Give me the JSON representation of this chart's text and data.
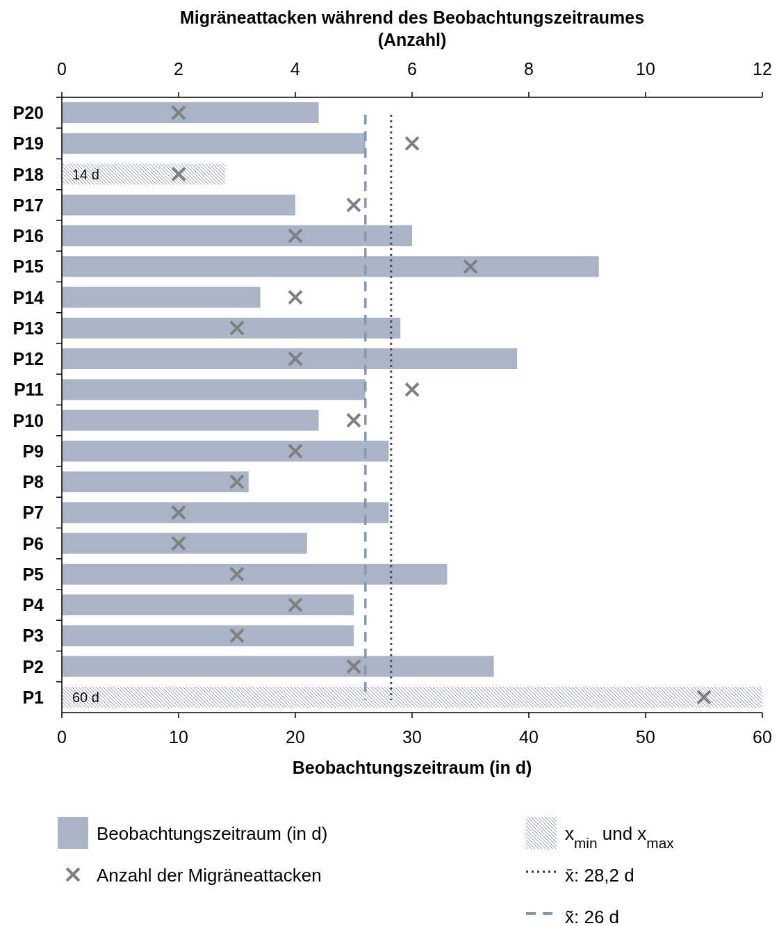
{
  "chart_data": {
    "type": "bar",
    "orientation": "horizontal",
    "x2label": "Migräneattacken während des Beobachtungszeitraumes (Anzahl)",
    "xlabel": "Beobachtungszeitraum (in d)",
    "categories": [
      "P20",
      "P19",
      "P18",
      "P17",
      "P16",
      "P15",
      "P14",
      "P13",
      "P12",
      "P11",
      "P10",
      "P9",
      "P8",
      "P7",
      "P6",
      "P5",
      "P4",
      "P3",
      "P2",
      "P1"
    ],
    "series": [
      {
        "name": "Beobachtungszeitraum (in d)",
        "color": "#a9b4c6",
        "values": [
          22,
          26,
          null,
          20,
          30,
          46,
          17,
          29,
          39,
          26,
          22,
          28,
          16,
          28,
          21,
          33,
          25,
          25,
          37,
          null
        ]
      },
      {
        "name": "x$_{min}$ und x$_{max}$",
        "color": "#8c9ab0",
        "values": [
          null,
          null,
          14,
          null,
          null,
          null,
          null,
          null,
          null,
          null,
          null,
          null,
          null,
          null,
          null,
          null,
          null,
          null,
          null,
          60
        ],
        "value_labels": [
          null,
          null,
          "14 d",
          null,
          null,
          null,
          null,
          null,
          null,
          null,
          null,
          null,
          null,
          null,
          null,
          null,
          null,
          null,
          null,
          "60 d"
        ]
      },
      {
        "name": "Anzahl der Migräneattacken",
        "type": "scatter",
        "axis": "x2",
        "color": "#7f7f7f",
        "values": [
          2,
          6,
          2,
          5,
          4,
          7,
          4,
          3,
          4,
          6,
          5,
          4,
          3,
          2,
          2,
          3,
          4,
          3,
          5,
          11
        ]
      }
    ],
    "xlim": [
      0,
      60
    ],
    "xticks": [
      0,
      10,
      20,
      30,
      40,
      50,
      60
    ],
    "x2lim": [
      0,
      12
    ],
    "x2ticks": [
      0,
      2,
      4,
      6,
      8,
      10,
      12
    ],
    "ref_lines": [
      {
        "axis": "x",
        "value": 28.2,
        "label": "x̄: 28,2 d",
        "color": "#3b4a63",
        "line_style": "dotted"
      },
      {
        "axis": "x",
        "value": 26,
        "label": "x̃: 26 d",
        "color": "#8497b0",
        "line_style": "dashed"
      }
    ],
    "marker": "cross",
    "grid": false,
    "legend": "bottom"
  }
}
